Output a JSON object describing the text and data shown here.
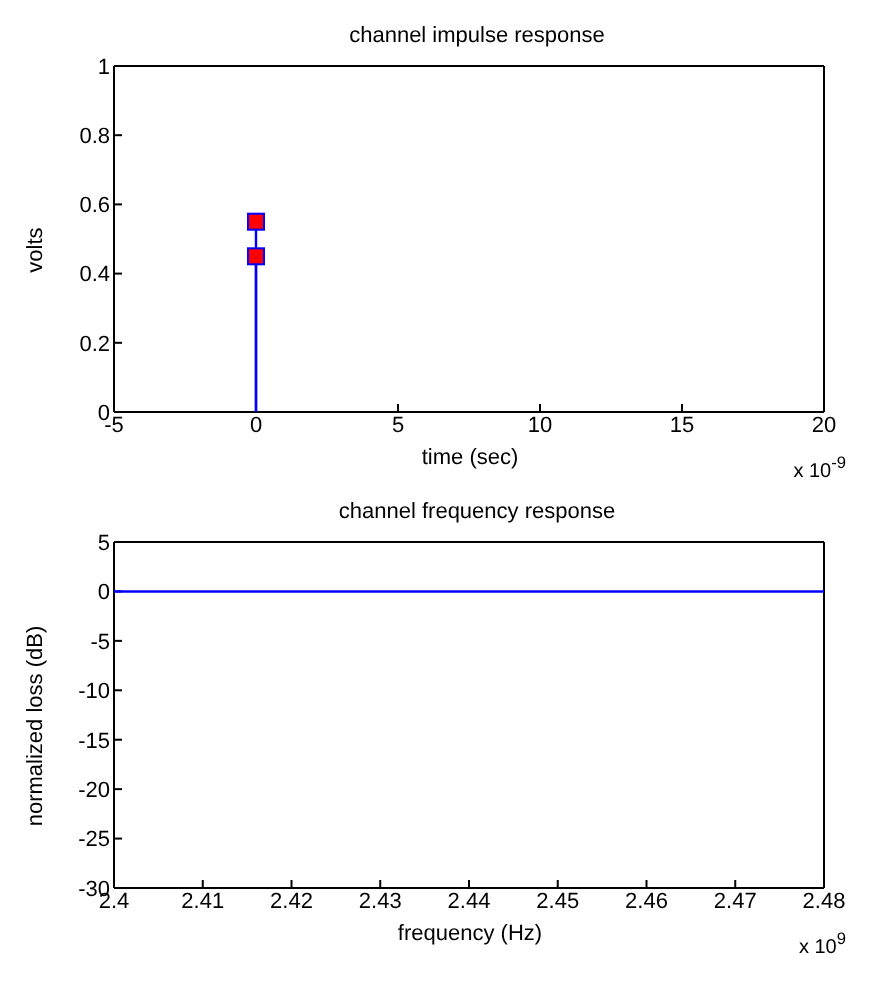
{
  "chart_data": [
    {
      "type": "lollipop",
      "title": "channel impulse response",
      "xlabel": "time (sec)",
      "ylabel": "volts",
      "annotations": [
        "x 10$^{-9}$"
      ],
      "series": [
        {
          "color": "#0000ff",
          "colors": [
            "#ff0000",
            "#ff0000"
          ],
          "x": [
            0,
            0
          ],
          "values": [
            0.45,
            0.55
          ]
        }
      ],
      "marker": "square",
      "xlim": [
        -5,
        20
      ],
      "xticks": [
        -5,
        0,
        5,
        10,
        15,
        20
      ],
      "ylim": [
        0,
        1
      ],
      "yticks": [
        0,
        0.2,
        0.4,
        0.6,
        0.8,
        1
      ]
    },
    {
      "type": "line",
      "title": "channel frequency response",
      "xlabel": "frequency (Hz)",
      "ylabel": "normalized loss (dB)",
      "annotations": [
        "x 10$^{9}$"
      ],
      "series": [
        {
          "color": "#0000ff",
          "x": [
            2.4,
            2.48
          ],
          "values": [
            0,
            0
          ]
        }
      ],
      "xlim": [
        2.4,
        2.48
      ],
      "xticks": [
        2.4,
        2.41,
        2.42,
        2.43,
        2.44,
        2.45,
        2.46,
        2.47,
        2.48
      ],
      "ylim": [
        -30,
        5
      ],
      "yticks": [
        -30,
        -25,
        -20,
        -15,
        -10,
        -5,
        0,
        5
      ]
    }
  ]
}
